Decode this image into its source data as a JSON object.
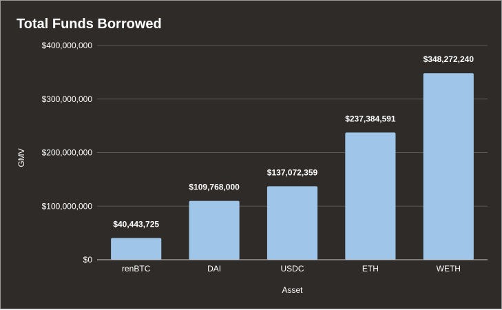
{
  "chart_data": {
    "type": "bar",
    "title": "Total Funds Borrowed",
    "xlabel": "Asset",
    "ylabel": "GMV",
    "categories": [
      "renBTC",
      "DAI",
      "USDC",
      "ETH",
      "WETH"
    ],
    "values": [
      40443725,
      109768000,
      137072359,
      237384591,
      348272240
    ],
    "data_labels": [
      "$40,443,725",
      "$109,768,000",
      "$137,072,359",
      "$237,384,591",
      "$348,272,240"
    ],
    "y_ticks": [
      0,
      100000000,
      200000000,
      300000000,
      400000000
    ],
    "y_tick_labels": [
      "$0",
      "$100,000,000",
      "$200,000,000",
      "$300,000,000",
      "$400,000,000"
    ],
    "ylim": [
      0,
      400000000
    ],
    "grid": true,
    "legend": "none",
    "colors": {
      "background": "#2e2b29",
      "bar": "#9fc5e8",
      "grid": "#5b5855",
      "axis": "#cfcfcf",
      "text": "#ffffff"
    }
  }
}
